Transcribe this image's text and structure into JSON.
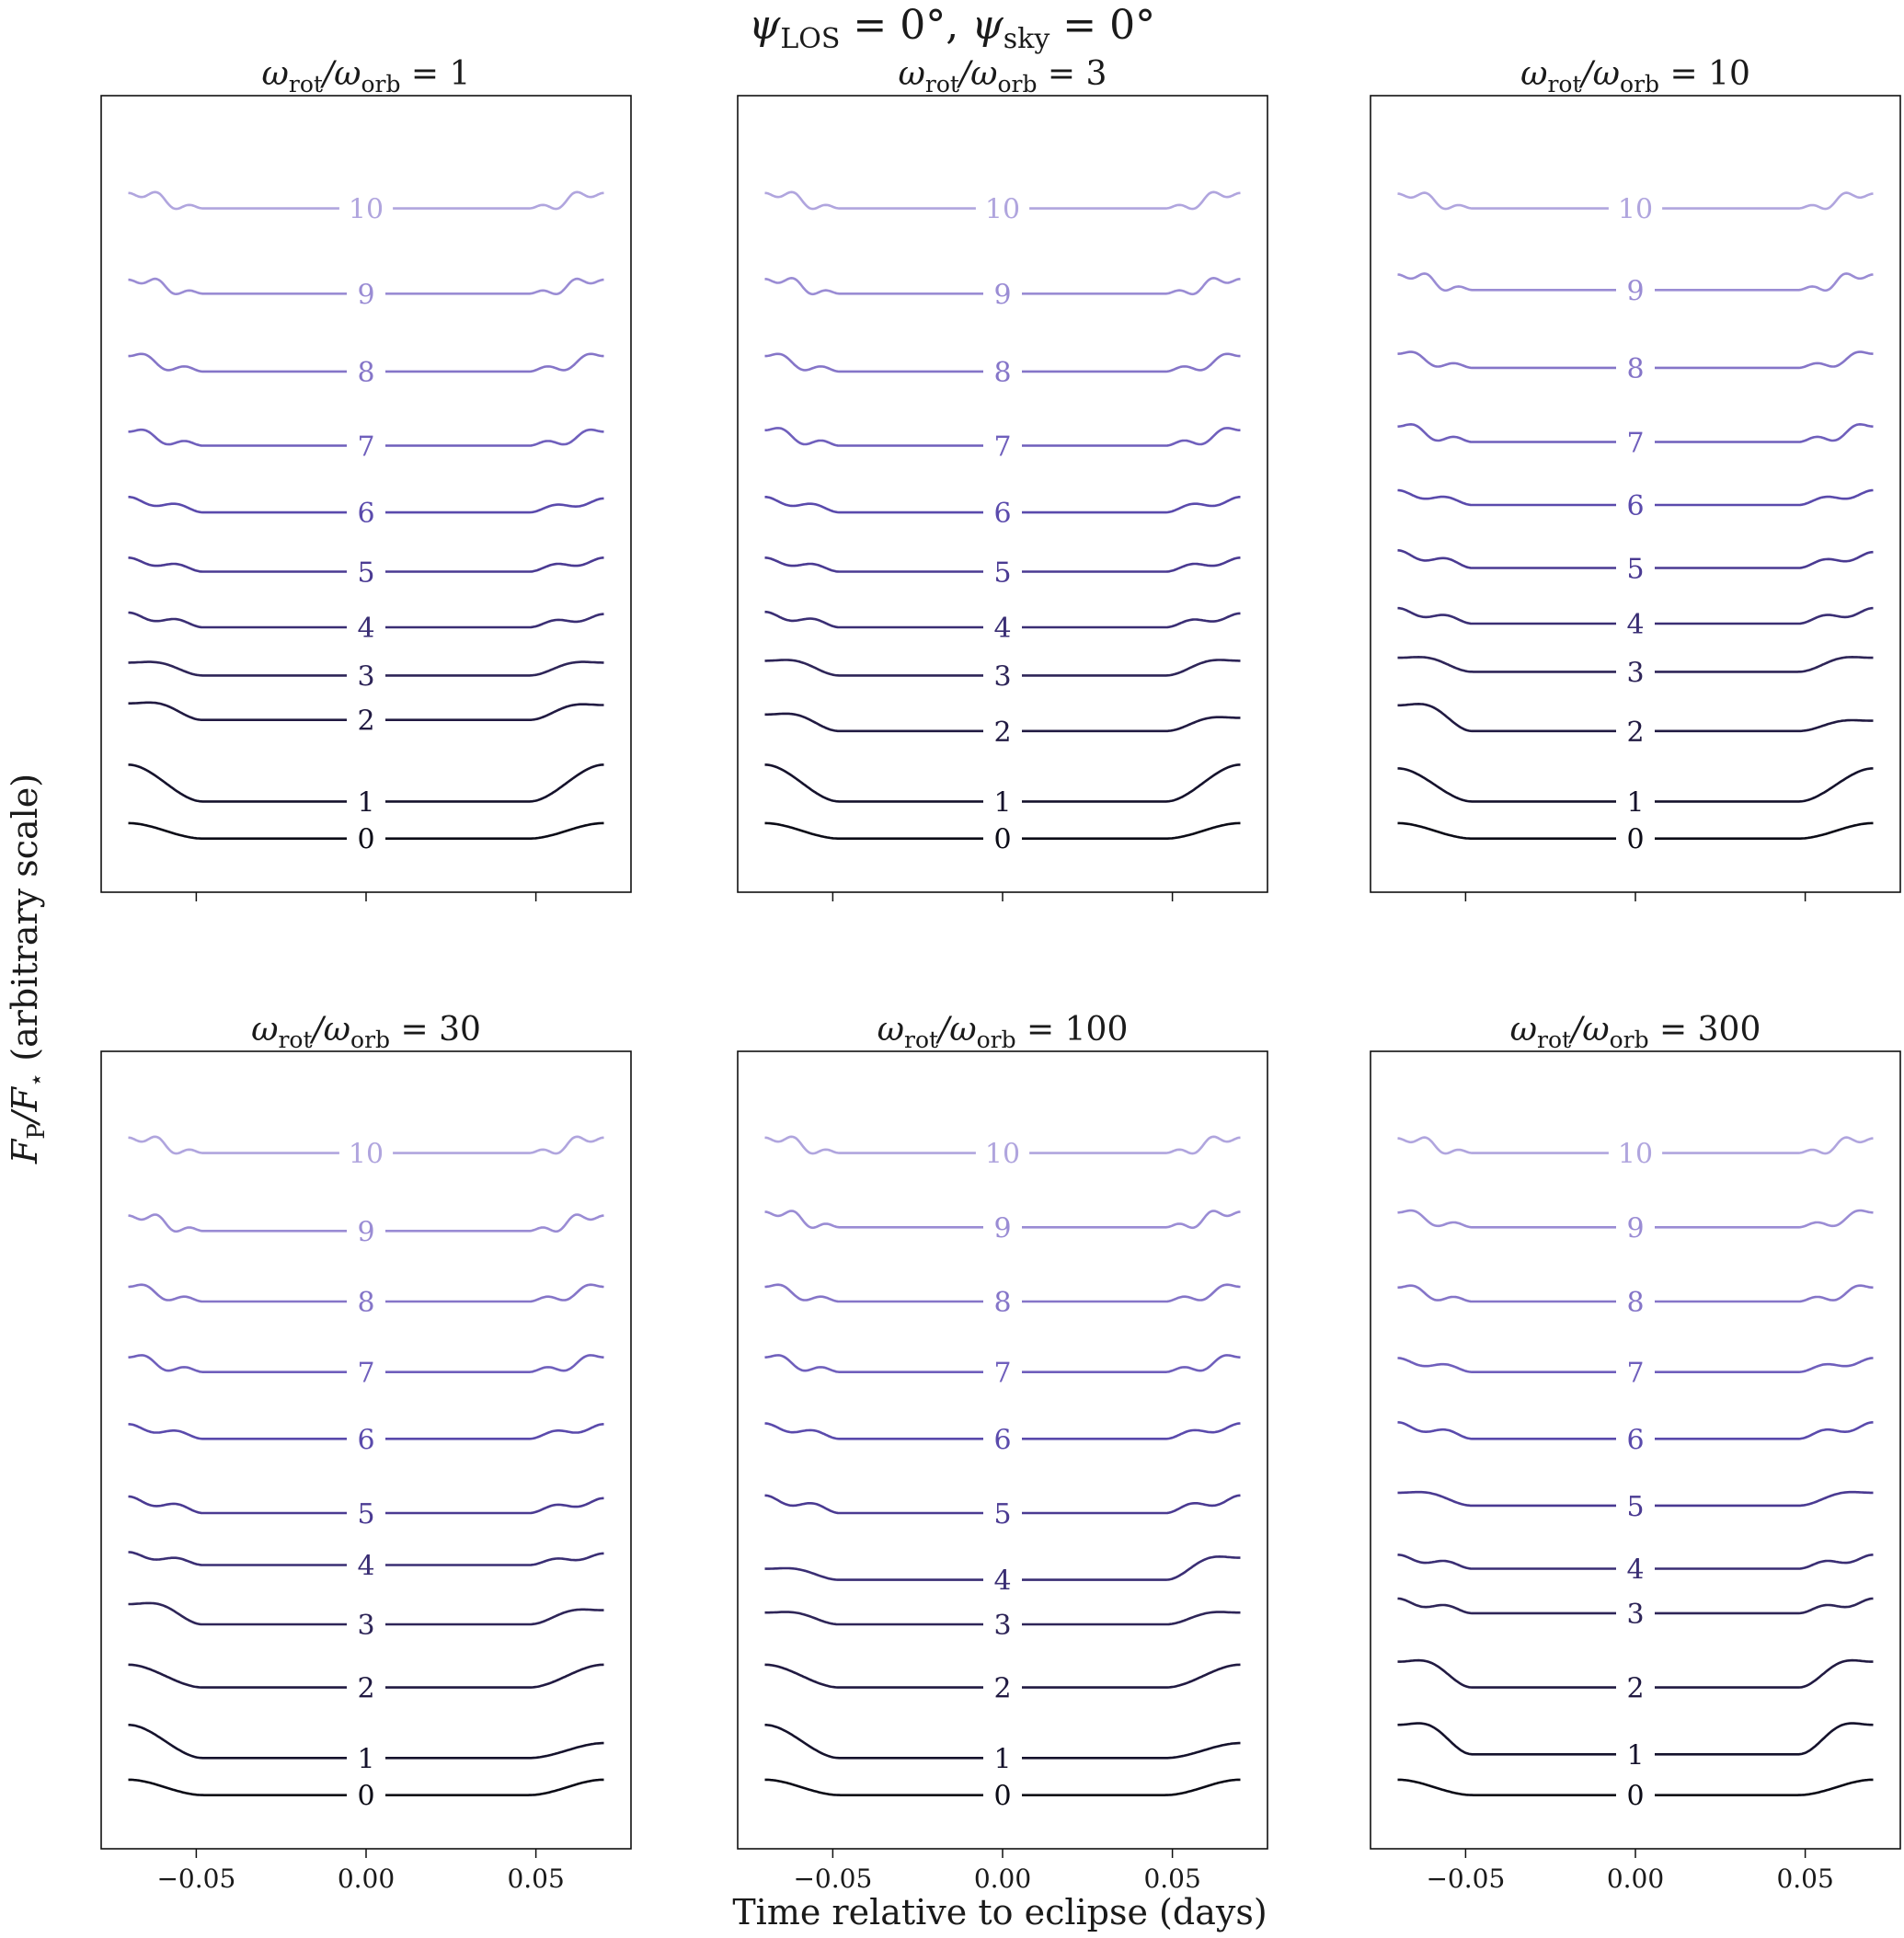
{
  "figure": {
    "suptitle_parts": [
      "ψ",
      "LOS",
      " = 0°, ",
      "ψ",
      "sky",
      " = 0°"
    ],
    "ylabel_parts": [
      "F",
      "P",
      "/F",
      "⋆",
      " (arbitrary scale)"
    ],
    "xlabel": "Time relative to eclipse (days)",
    "x_ticks": [
      -0.05,
      0.0,
      0.05
    ],
    "x_tick_labels": [
      "−0.05",
      "0.00",
      "0.05"
    ],
    "xlim": [
      -0.078,
      0.078
    ],
    "ylim": [
      0.0,
      10.0
    ],
    "colors": [
      "#0b0b16",
      "#15122c",
      "#211a42",
      "#2e2558",
      "#3a2e74",
      "#4a3a92",
      "#5a4aac",
      "#6f5fbc",
      "#8575c8",
      "#9a8cd4",
      "#b0a5de"
    ]
  },
  "chart_data": [
    {
      "type": "line",
      "title_parts": [
        "ω",
        "rot",
        "/ω",
        "orb",
        " = 1"
      ],
      "series": [
        {
          "name": "0",
          "label": "0",
          "baseline": 0.5,
          "amp": 0.42,
          "waves": 0,
          "skew": 1.0
        },
        {
          "name": "1",
          "label": "1",
          "baseline": 1.0,
          "amp": 1.0,
          "waves": 0,
          "skew": 1.0
        },
        {
          "name": "2",
          "label": "2",
          "baseline": 2.1,
          "amp": 0.45,
          "waves": 1,
          "skew": 0.9
        },
        {
          "name": "3",
          "label": "3",
          "baseline": 2.7,
          "amp": 0.35,
          "waves": 1,
          "skew": 1.0
        },
        {
          "name": "4",
          "label": "4",
          "baseline": 3.35,
          "amp": 0.4,
          "waves": 2,
          "skew": 0.9
        },
        {
          "name": "5",
          "label": "5",
          "baseline": 4.1,
          "amp": 0.38,
          "waves": 2,
          "skew": 1.0
        },
        {
          "name": "6",
          "label": "6",
          "baseline": 4.9,
          "amp": 0.42,
          "waves": 2,
          "skew": 0.9
        },
        {
          "name": "7",
          "label": "7",
          "baseline": 5.8,
          "amp": 0.38,
          "waves": 3,
          "skew": 1.0
        },
        {
          "name": "8",
          "label": "8",
          "baseline": 6.8,
          "amp": 0.42,
          "waves": 3,
          "skew": 1.0
        },
        {
          "name": "9",
          "label": "9",
          "baseline": 7.85,
          "amp": 0.38,
          "waves": 4,
          "skew": 1.0
        },
        {
          "name": "10",
          "label": "10",
          "baseline": 9.0,
          "amp": 0.42,
          "waves": 4,
          "skew": 1.0
        }
      ]
    },
    {
      "type": "line",
      "title_parts": [
        "ω",
        "rot",
        "/ω",
        "orb",
        " = 3"
      ],
      "series": [
        {
          "name": "0",
          "label": "0",
          "baseline": 0.5,
          "amp": 0.42,
          "waves": 0,
          "skew": 1.0
        },
        {
          "name": "1",
          "label": "1",
          "baseline": 1.0,
          "amp": 1.0,
          "waves": 0,
          "skew": 1.0
        },
        {
          "name": "2",
          "label": "2",
          "baseline": 1.95,
          "amp": 0.45,
          "waves": 1,
          "skew": 0.8
        },
        {
          "name": "3",
          "label": "3",
          "baseline": 2.7,
          "amp": 0.4,
          "waves": 1,
          "skew": 1.0
        },
        {
          "name": "4",
          "label": "4",
          "baseline": 3.35,
          "amp": 0.42,
          "waves": 2,
          "skew": 0.9
        },
        {
          "name": "5",
          "label": "5",
          "baseline": 4.1,
          "amp": 0.38,
          "waves": 2,
          "skew": 1.0
        },
        {
          "name": "6",
          "label": "6",
          "baseline": 4.9,
          "amp": 0.42,
          "waves": 2,
          "skew": 1.0
        },
        {
          "name": "7",
          "label": "7",
          "baseline": 5.8,
          "amp": 0.42,
          "waves": 3,
          "skew": 1.0
        },
        {
          "name": "8",
          "label": "8",
          "baseline": 6.8,
          "amp": 0.42,
          "waves": 3,
          "skew": 1.0
        },
        {
          "name": "9",
          "label": "9",
          "baseline": 7.85,
          "amp": 0.4,
          "waves": 4,
          "skew": 1.0
        },
        {
          "name": "10",
          "label": "10",
          "baseline": 9.0,
          "amp": 0.42,
          "waves": 4,
          "skew": 1.0
        }
      ]
    },
    {
      "type": "line",
      "title_parts": [
        "ω",
        "rot",
        "/ω",
        "orb",
        " = 10"
      ],
      "series": [
        {
          "name": "0",
          "label": "0",
          "baseline": 0.5,
          "amp": 0.42,
          "waves": 0,
          "skew": 1.0
        },
        {
          "name": "1",
          "label": "1",
          "baseline": 1.0,
          "amp": 0.9,
          "waves": 0,
          "skew": 1.0
        },
        {
          "name": "2",
          "label": "2",
          "baseline": 1.95,
          "amp": 0.7,
          "waves": 1,
          "skew": 0.4
        },
        {
          "name": "3",
          "label": "3",
          "baseline": 2.75,
          "amp": 0.38,
          "waves": 1,
          "skew": 1.0
        },
        {
          "name": "4",
          "label": "4",
          "baseline": 3.4,
          "amp": 0.42,
          "waves": 2,
          "skew": 1.0
        },
        {
          "name": "5",
          "label": "5",
          "baseline": 4.15,
          "amp": 0.48,
          "waves": 2,
          "skew": 0.9
        },
        {
          "name": "6",
          "label": "6",
          "baseline": 5.0,
          "amp": 0.4,
          "waves": 2,
          "skew": 1.0
        },
        {
          "name": "7",
          "label": "7",
          "baseline": 5.85,
          "amp": 0.42,
          "waves": 3,
          "skew": 1.0
        },
        {
          "name": "8",
          "label": "8",
          "baseline": 6.85,
          "amp": 0.38,
          "waves": 3,
          "skew": 1.0
        },
        {
          "name": "9",
          "label": "9",
          "baseline": 7.9,
          "amp": 0.42,
          "waves": 4,
          "skew": 1.0
        },
        {
          "name": "10",
          "label": "10",
          "baseline": 9.0,
          "amp": 0.4,
          "waves": 4,
          "skew": 1.0
        }
      ]
    },
    {
      "type": "line",
      "title_parts": [
        "ω",
        "rot",
        "/ω",
        "orb",
        " = 30"
      ],
      "series": [
        {
          "name": "0",
          "label": "0",
          "baseline": 0.5,
          "amp": 0.42,
          "waves": 0,
          "skew": 1.0
        },
        {
          "name": "1",
          "label": "1",
          "baseline": 1.0,
          "amp": 0.9,
          "waves": 0,
          "skew": 0.45
        },
        {
          "name": "2",
          "label": "2",
          "baseline": 1.95,
          "amp": 0.62,
          "waves": 0,
          "skew": 1.0
        },
        {
          "name": "3",
          "label": "3",
          "baseline": 2.8,
          "amp": 0.55,
          "waves": 1,
          "skew": 0.7
        },
        {
          "name": "4",
          "label": "4",
          "baseline": 3.6,
          "amp": 0.35,
          "waves": 2,
          "skew": 0.9
        },
        {
          "name": "5",
          "label": "5",
          "baseline": 4.3,
          "amp": 0.45,
          "waves": 2,
          "skew": 0.9
        },
        {
          "name": "6",
          "label": "6",
          "baseline": 5.3,
          "amp": 0.4,
          "waves": 2,
          "skew": 1.0
        },
        {
          "name": "7",
          "label": "7",
          "baseline": 6.2,
          "amp": 0.4,
          "waves": 3,
          "skew": 1.0
        },
        {
          "name": "8",
          "label": "8",
          "baseline": 7.15,
          "amp": 0.4,
          "waves": 3,
          "skew": 1.0
        },
        {
          "name": "9",
          "label": "9",
          "baseline": 8.1,
          "amp": 0.42,
          "waves": 4,
          "skew": 1.0
        },
        {
          "name": "10",
          "label": "10",
          "baseline": 9.15,
          "amp": 0.42,
          "waves": 4,
          "skew": 1.0
        }
      ]
    },
    {
      "type": "line",
      "title_parts": [
        "ω",
        "rot",
        "/ω",
        "orb",
        " = 100"
      ],
      "series": [
        {
          "name": "0",
          "label": "0",
          "baseline": 0.5,
          "amp": 0.42,
          "waves": 0,
          "skew": 1.0
        },
        {
          "name": "1",
          "label": "1",
          "baseline": 1.0,
          "amp": 0.9,
          "waves": 0,
          "skew": 0.45
        },
        {
          "name": "2",
          "label": "2",
          "baseline": 1.95,
          "amp": 0.62,
          "waves": 0,
          "skew": 1.0
        },
        {
          "name": "3",
          "label": "3",
          "baseline": 2.8,
          "amp": 0.32,
          "waves": 1,
          "skew": 1.0
        },
        {
          "name": "4",
          "label": "4",
          "baseline": 3.4,
          "amp": 0.3,
          "waves": 1,
          "skew": 2.0
        },
        {
          "name": "5",
          "label": "5",
          "baseline": 4.3,
          "amp": 0.48,
          "waves": 2,
          "skew": 1.0
        },
        {
          "name": "6",
          "label": "6",
          "baseline": 5.3,
          "amp": 0.42,
          "waves": 2,
          "skew": 1.0
        },
        {
          "name": "7",
          "label": "7",
          "baseline": 6.2,
          "amp": 0.4,
          "waves": 3,
          "skew": 1.0
        },
        {
          "name": "8",
          "label": "8",
          "baseline": 7.15,
          "amp": 0.4,
          "waves": 3,
          "skew": 1.0
        },
        {
          "name": "9",
          "label": "9",
          "baseline": 8.15,
          "amp": 0.42,
          "waves": 4,
          "skew": 1.0
        },
        {
          "name": "10",
          "label": "10",
          "baseline": 9.15,
          "amp": 0.42,
          "waves": 4,
          "skew": 1.0
        }
      ]
    },
    {
      "type": "line",
      "title_parts": [
        "ω",
        "rot",
        "/ω",
        "orb",
        " = 300"
      ],
      "series": [
        {
          "name": "0",
          "label": "0",
          "baseline": 0.5,
          "amp": 0.42,
          "waves": 0,
          "skew": 1.0
        },
        {
          "name": "1",
          "label": "1",
          "baseline": 1.05,
          "amp": 0.8,
          "waves": 1,
          "skew": 1.0
        },
        {
          "name": "2",
          "label": "2",
          "baseline": 1.95,
          "amp": 0.7,
          "waves": 1,
          "skew": 1.0
        },
        {
          "name": "3",
          "label": "3",
          "baseline": 2.95,
          "amp": 0.4,
          "waves": 2,
          "skew": 1.0
        },
        {
          "name": "4",
          "label": "4",
          "baseline": 3.55,
          "amp": 0.38,
          "waves": 2,
          "skew": 1.0
        },
        {
          "name": "5",
          "label": "5",
          "baseline": 4.4,
          "amp": 0.35,
          "waves": 1,
          "skew": 1.0
        },
        {
          "name": "6",
          "label": "6",
          "baseline": 5.3,
          "amp": 0.45,
          "waves": 2,
          "skew": 1.0
        },
        {
          "name": "7",
          "label": "7",
          "baseline": 6.2,
          "amp": 0.38,
          "waves": 2,
          "skew": 1.0
        },
        {
          "name": "8",
          "label": "8",
          "baseline": 7.15,
          "amp": 0.38,
          "waves": 3,
          "skew": 1.0
        },
        {
          "name": "9",
          "label": "9",
          "baseline": 8.15,
          "amp": 0.4,
          "waves": 3,
          "skew": 1.0
        },
        {
          "name": "10",
          "label": "10",
          "baseline": 9.15,
          "amp": 0.4,
          "waves": 4,
          "skew": 1.0
        }
      ]
    }
  ]
}
